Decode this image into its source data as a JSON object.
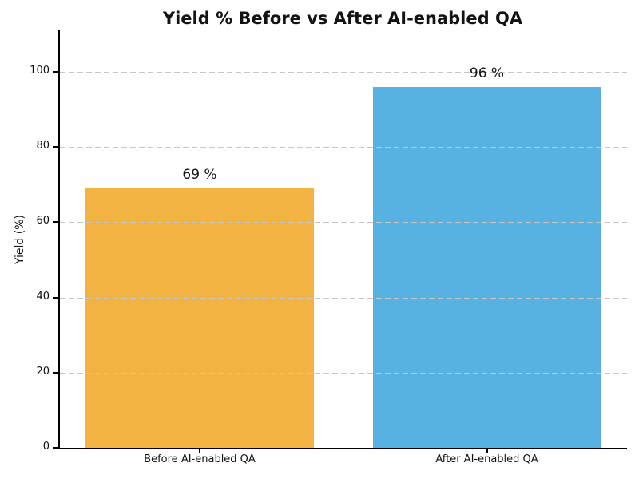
{
  "figure": {
    "title": "Yield % Before vs After AI-enabled QA"
  },
  "chart_data": {
    "type": "bar",
    "title": "Yield % Before vs After AI-enabled QA",
    "categories": [
      "Before AI-enabled QA",
      "After AI-enabled QA"
    ],
    "values": [
      69,
      96
    ],
    "value_labels": [
      "69 %",
      "96 %"
    ],
    "bar_colors": [
      "#F2B343",
      "#57B1E1"
    ],
    "xlabel": "",
    "ylabel": "Yield (%)",
    "ylim": [
      0,
      111
    ],
    "yticks": [
      0,
      20,
      40,
      60,
      80,
      100
    ],
    "grid": {
      "axis": "y",
      "style": "dashed",
      "color": "#C6C6C6",
      "on": true
    },
    "legend_position": "none",
    "axis_color": "#000000",
    "text_color": "#131313",
    "background": "#FFFFFF"
  }
}
